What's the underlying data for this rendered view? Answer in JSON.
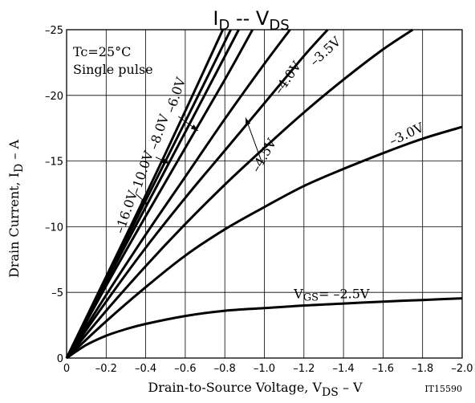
{
  "chart_data": {
    "type": "line",
    "title": "I_D -- V_DS",
    "title_main": "I",
    "title_sub1": "D",
    "title_sep": " -- V",
    "title_sub2": "DS",
    "xlabel": "Drain-to-Source Voltage, V_DS - V",
    "xlabel_main": "Drain-to-Source Voltage, V",
    "xlabel_sub": "DS",
    "xlabel_unit": " – V",
    "ylabel": "Drain Current, I_D - A",
    "ylabel_main": "Drain Current, I",
    "ylabel_sub": "D",
    "ylabel_unit": " – A",
    "annotation_conditions": [
      "Tc=25°C",
      "Single pulse"
    ],
    "figure_id": "IT15590",
    "xlim": [
      0,
      -2.0
    ],
    "ylim": [
      0,
      -25
    ],
    "grid": true,
    "x_ticks": [
      0,
      -0.2,
      -0.4,
      -0.6,
      -0.8,
      -1.0,
      -1.2,
      -1.4,
      -1.6,
      -1.8,
      -2.0
    ],
    "x_tick_labels": [
      "0",
      "–0.2",
      "–0.4",
      "–0.6",
      "–0.8",
      "–1.0",
      "–1.2",
      "–1.4",
      "–1.6",
      "–1.8",
      "–2.0"
    ],
    "y_ticks": [
      0,
      -5,
      -10,
      -15,
      -20,
      -25
    ],
    "y_tick_labels": [
      "0",
      "–5",
      "–10",
      "–15",
      "–20",
      "–25"
    ],
    "series": [
      {
        "name": "–16.0V",
        "x": [
          0,
          -0.2,
          -0.4,
          -0.6,
          -0.79
        ],
        "y": [
          0,
          -6.2,
          -12.4,
          -18.8,
          -25
        ]
      },
      {
        "name": "–10.0V",
        "x": [
          0,
          -0.2,
          -0.4,
          -0.6,
          -0.83
        ],
        "y": [
          0,
          -6.0,
          -12.0,
          -18.0,
          -25
        ]
      },
      {
        "name": "–8.0V",
        "x": [
          0,
          -0.2,
          -0.4,
          -0.6,
          -0.87
        ],
        "y": [
          0,
          -5.8,
          -11.5,
          -17.2,
          -25
        ]
      },
      {
        "name": "–6.0V",
        "x": [
          0,
          -0.2,
          -0.4,
          -0.6,
          -0.8,
          -0.94
        ],
        "y": [
          0,
          -5.5,
          -10.8,
          -16.0,
          -21.2,
          -25
        ]
      },
      {
        "name": "–4.5V",
        "x": [
          0,
          -0.2,
          -0.4,
          -0.6,
          -0.8,
          -1.0,
          -1.13
        ],
        "y": [
          0,
          -4.8,
          -9.4,
          -13.8,
          -18.2,
          -22.4,
          -25
        ]
      },
      {
        "name": "–4.0V",
        "x": [
          0,
          -0.2,
          -0.4,
          -0.6,
          -0.8,
          -1.0,
          -1.2,
          -1.32
        ],
        "y": [
          0,
          -4.3,
          -8.4,
          -12.2,
          -15.8,
          -19.4,
          -23.0,
          -25
        ]
      },
      {
        "name": "–3.5V",
        "x": [
          0,
          -0.2,
          -0.4,
          -0.6,
          -0.8,
          -1.0,
          -1.2,
          -1.4,
          -1.6,
          -1.75
        ],
        "y": [
          0,
          -3.6,
          -7.0,
          -10.2,
          -13.2,
          -16.0,
          -18.7,
          -21.2,
          -23.5,
          -25
        ]
      },
      {
        "name": "–3.0V",
        "x": [
          0,
          -0.2,
          -0.4,
          -0.6,
          -0.8,
          -1.0,
          -1.2,
          -1.4,
          -1.6,
          -1.8,
          -2.0
        ],
        "y": [
          0,
          -2.8,
          -5.4,
          -7.8,
          -9.8,
          -11.5,
          -13.1,
          -14.4,
          -15.6,
          -16.7,
          -17.6
        ]
      },
      {
        "name": "V_GS= –2.5V",
        "x": [
          0,
          -0.1,
          -0.2,
          -0.3,
          -0.4,
          -0.6,
          -0.8,
          -1.0,
          -1.2,
          -1.4,
          -1.6,
          -1.8,
          -2.0
        ],
        "y": [
          0,
          -1.0,
          -1.7,
          -2.2,
          -2.6,
          -3.2,
          -3.6,
          -3.8,
          -4.0,
          -4.15,
          -4.3,
          -4.42,
          -4.55
        ]
      }
    ],
    "curve_labels": [
      {
        "text": "–16.0V",
        "x": -0.305,
        "y": -11.1,
        "rot": -71
      },
      {
        "text": "–10.0V",
        "x": -0.385,
        "y": -14.1,
        "rot": -71
      },
      {
        "text": "–8.0V",
        "x": -0.47,
        "y": -17.2,
        "rot": -71
      },
      {
        "text": "–6.0V",
        "x": -0.555,
        "y": -20.0,
        "rot": -71
      },
      {
        "text": "–4.5V",
        "x": -1.0,
        "y": -15.4,
        "rot": -60
      },
      {
        "text": "–4.0V",
        "x": -1.12,
        "y": -21.3,
        "rot": -55
      },
      {
        "text": "–3.5V",
        "x": -1.31,
        "y": -23.3,
        "rot": -42
      },
      {
        "text": "–3.0V",
        "x": -1.72,
        "y": -17.0,
        "rot": -25
      },
      {
        "text_main": "V",
        "text_sub": "GS",
        "text_rest": "= –2.5V",
        "x": -1.34,
        "y": -4.85,
        "rot": 0
      }
    ],
    "arrows": [
      {
        "from": [
          -0.565,
          -18.4
        ],
        "to": [
          -0.665,
          -17.3
        ]
      },
      {
        "from": [
          -0.45,
          -15.3
        ],
        "to": [
          -0.52,
          -14.8
        ]
      },
      {
        "from": [
          -0.35,
          -12.5
        ],
        "to": [
          -0.41,
          -11.7
        ]
      },
      {
        "from": [
          -0.985,
          -15.0
        ],
        "to": [
          -0.905,
          -18.3
        ]
      }
    ],
    "line_color": "#000000"
  }
}
